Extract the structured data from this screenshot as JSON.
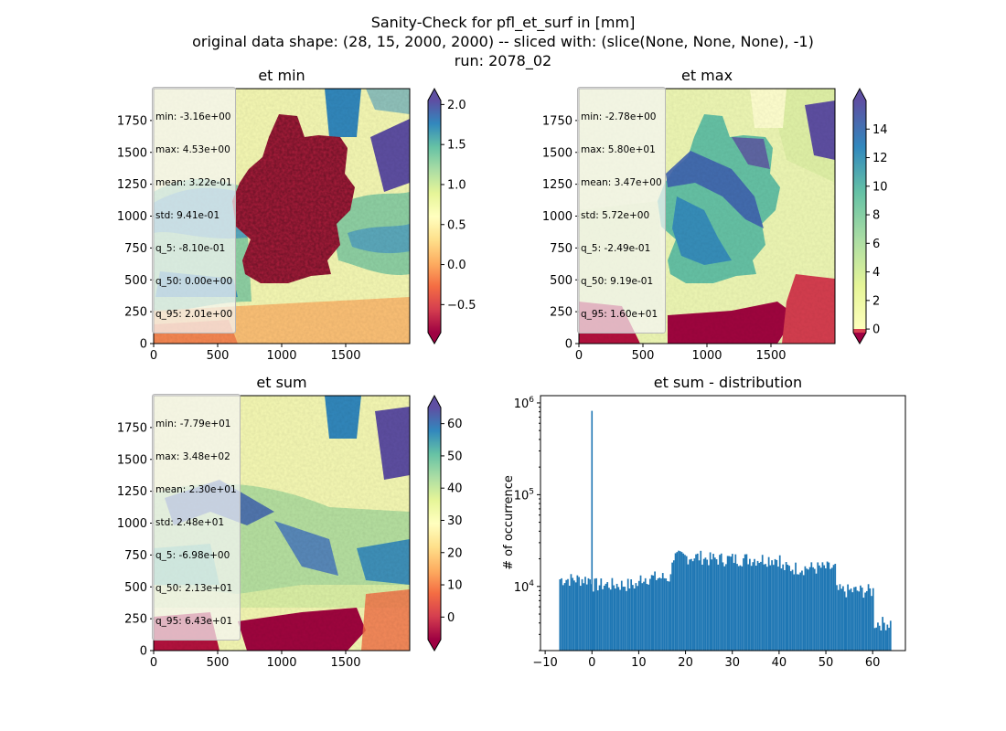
{
  "figure": {
    "suptitle": [
      "Sanity-Check for pfl_et_surf in [mm]",
      "original data shape: (28, 15, 2000, 2000) -- sliced with: (slice(None, None, None), -1)",
      "run: 2078_02"
    ]
  },
  "chart_data": [
    {
      "type": "heatmap",
      "title": "et min",
      "xlim": [
        0,
        2000
      ],
      "ylim": [
        0,
        2000
      ],
      "xticks": [
        "0",
        "500",
        "1000",
        "1500"
      ],
      "yticks": [
        "0",
        "250",
        "500",
        "750",
        "1000",
        "1250",
        "1500",
        "1750"
      ],
      "colormap": "Spectral",
      "colorbar": {
        "range": [
          -0.85,
          2.05
        ],
        "ticks": [
          "−0.5",
          "0.0",
          "0.5",
          "1.0",
          "1.5",
          "2.0"
        ],
        "extend": "both"
      },
      "stats": {
        "min": "-3.16e+00",
        "max": "4.53e+00",
        "mean": "3.22e-01",
        "std": "9.41e-01",
        "q_5": "-8.10e-01",
        "q_50": "0.00e+00",
        "q_95": "2.01e+00"
      }
    },
    {
      "type": "heatmap",
      "title": "et max",
      "xlim": [
        0,
        2000
      ],
      "ylim": [
        0,
        2000
      ],
      "xticks": [
        "0",
        "500",
        "1000",
        "1500"
      ],
      "yticks": [
        "0",
        "250",
        "500",
        "750",
        "1000",
        "1250",
        "1500",
        "1750"
      ],
      "colormap": "Spectral",
      "colorbar": {
        "range": [
          -0.25,
          16
        ],
        "ticks": [
          "0",
          "2",
          "4",
          "6",
          "8",
          "10",
          "12",
          "14"
        ],
        "extend": "both"
      },
      "stats": {
        "min": "-2.78e+00",
        "max": "5.80e+01",
        "mean": "3.47e+00",
        "std": "5.72e+00",
        "q_5": "-2.49e-01",
        "q_50": "9.19e-01",
        "q_95": "1.60e+01"
      }
    },
    {
      "type": "heatmap",
      "title": "et sum",
      "xlim": [
        0,
        2000
      ],
      "ylim": [
        0,
        2000
      ],
      "xticks": [
        "0",
        "500",
        "1000",
        "1500"
      ],
      "yticks": [
        "0",
        "250",
        "500",
        "750",
        "1000",
        "1250",
        "1500",
        "1750"
      ],
      "colormap": "Spectral",
      "colorbar": {
        "range": [
          -7,
          65
        ],
        "ticks": [
          "0",
          "10",
          "20",
          "30",
          "40",
          "50",
          "60"
        ],
        "extend": "both"
      },
      "stats": {
        "min": "-7.79e+01",
        "max": "3.48e+02",
        "mean": "2.30e+01",
        "std": "2.48e+01",
        "q_5": "-6.98e+00",
        "q_50": "2.13e+01",
        "q_95": "6.43e+01"
      }
    },
    {
      "type": "bar",
      "title": "et sum - distribution",
      "xlabel": "",
      "ylabel": "# of occurrence",
      "yscale": "log",
      "xlim": [
        -11,
        67
      ],
      "ylim": [
        2000,
        1200000
      ],
      "xticks": [
        "−10",
        "0",
        "10",
        "20",
        "30",
        "40",
        "50",
        "60"
      ],
      "yticks": [
        "10^4",
        "10^5",
        "10^6"
      ],
      "bin_range": [
        -7,
        64
      ],
      "spike": {
        "x": 0,
        "count": 820000
      },
      "approx_counts_per_bin_range": [
        {
          "x_from": -7,
          "x_to": 0,
          "count": 12000
        },
        {
          "x_from": 0,
          "x_to": 10,
          "count": 10500
        },
        {
          "x_from": 10,
          "x_to": 17,
          "count": 12500
        },
        {
          "x_from": 17,
          "x_to": 24,
          "count": 21000
        },
        {
          "x_from": 24,
          "x_to": 40,
          "count": 20000
        },
        {
          "x_from": 40,
          "x_to": 52,
          "count": 16000
        },
        {
          "x_from": 52,
          "x_to": 60,
          "count": 9000
        },
        {
          "x_from": 60,
          "x_to": 64,
          "count": 4000
        }
      ],
      "color": "#1f77b4"
    }
  ]
}
